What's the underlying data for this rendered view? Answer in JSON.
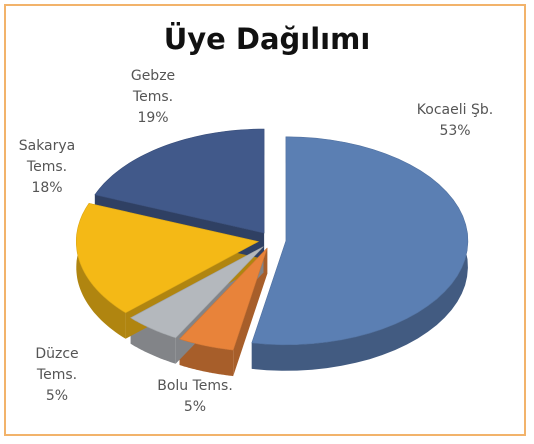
{
  "chart_data": {
    "type": "pie",
    "title": "Üye Dağılımı",
    "categories": [
      "Kocaeli Şb.",
      "Bolu Tems.",
      "Düzce Tems.",
      "Sakarya Tems.",
      "Gebze Tems."
    ],
    "values": [
      53,
      5,
      5,
      18,
      19
    ],
    "value_labels": [
      "53%",
      "5%",
      "5%",
      "18%",
      "19%"
    ],
    "colors": [
      "#5b7fb3",
      "#e8833a",
      "#b4b8bd",
      "#f4b916",
      "#41598a"
    ]
  }
}
